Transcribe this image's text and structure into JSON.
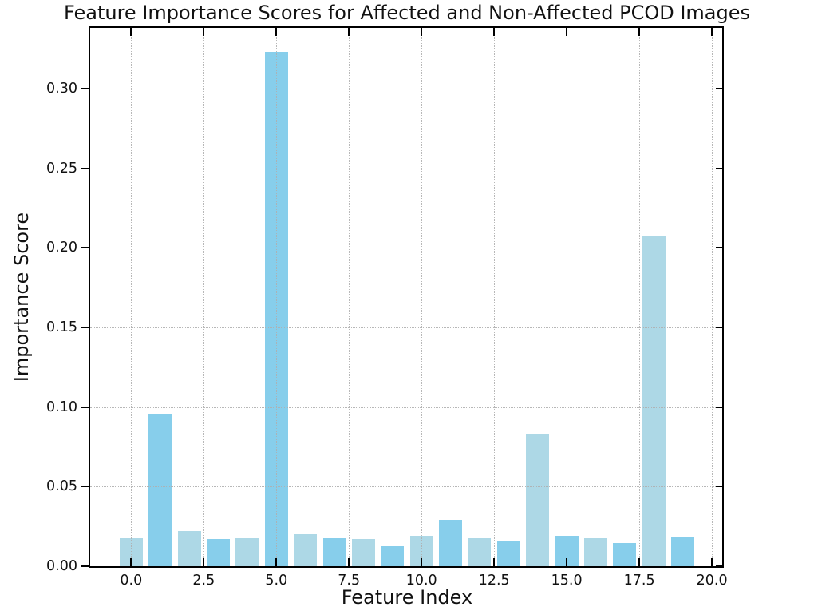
{
  "chart_data": {
    "type": "bar",
    "title": "Feature Importance Scores for Affected and Non-Affected PCOD Images",
    "xlabel": "Feature Index",
    "ylabel": "Importance Score",
    "x": [
      0,
      1,
      2,
      3,
      4,
      5,
      6,
      7,
      8,
      9,
      10,
      11,
      12,
      13,
      14,
      15,
      16,
      17,
      18,
      19
    ],
    "values": [
      0.018,
      0.096,
      0.022,
      0.017,
      0.018,
      0.323,
      0.02,
      0.0175,
      0.017,
      0.013,
      0.019,
      0.029,
      0.018,
      0.016,
      0.083,
      0.019,
      0.018,
      0.0145,
      0.2075,
      0.0185
    ],
    "bar_colors": [
      "#add8e6",
      "#87ceeb",
      "#add8e6",
      "#87ceeb",
      "#add8e6",
      "#87ceeb",
      "#add8e6",
      "#87ceeb",
      "#add8e6",
      "#87ceeb",
      "#add8e6",
      "#87ceeb",
      "#add8e6",
      "#87ceeb",
      "#add8e6",
      "#87ceeb",
      "#add8e6",
      "#87ceeb",
      "#add8e6",
      "#87ceeb"
    ],
    "bar_width_units": 0.8,
    "xticks": {
      "labels": [
        "0.0",
        "2.5",
        "5.0",
        "7.5",
        "10.0",
        "12.5",
        "15.0",
        "17.5",
        "20.0"
      ],
      "values": [
        0,
        2.5,
        5,
        7.5,
        10,
        12.5,
        15,
        17.5,
        20
      ]
    },
    "yticks": {
      "labels": [
        "0.00",
        "0.05",
        "0.10",
        "0.15",
        "0.20",
        "0.25",
        "0.30"
      ],
      "values": [
        0,
        0.05,
        0.1,
        0.15,
        0.2,
        0.25,
        0.3
      ]
    },
    "xlim": [
      -1.41,
      20.41
    ],
    "ylim": [
      0,
      0.338
    ],
    "grid": true,
    "grid_linestyle": "dotted",
    "grid_color": "#b0b0b0",
    "legend": null,
    "colors": {
      "light_bar": "#add8e6",
      "dark_bar": "#87ceeb",
      "spine": "#000000",
      "text": "#111111",
      "background": "#ffffff"
    }
  }
}
